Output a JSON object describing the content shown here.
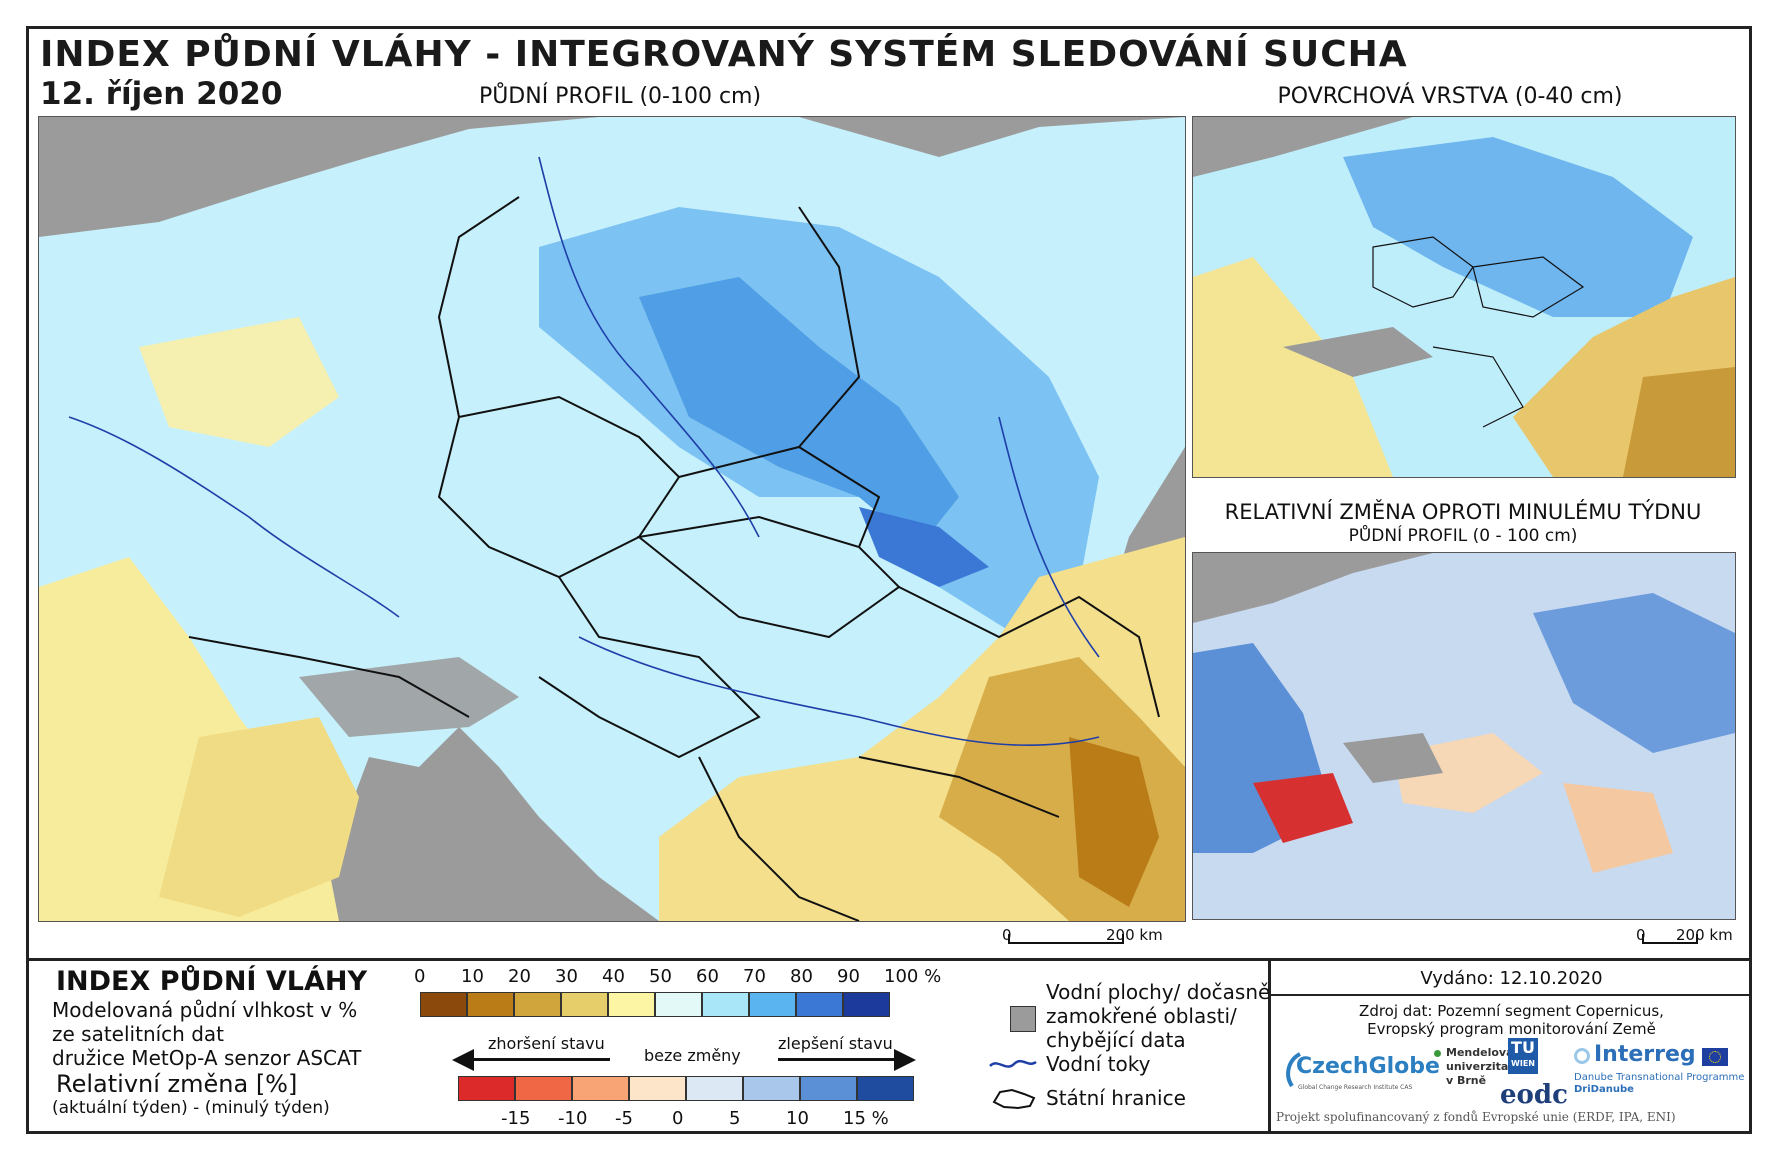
{
  "header": {
    "title": "INDEX PŮDNÍ VLÁHY - INTEGROVANÝ SYSTÉM SLEDOVÁNÍ SUCHA",
    "date": "12. říjen 2020"
  },
  "maps": {
    "main_caption": "PŮDNÍ PROFIL (0-100 cm)",
    "surface_caption": "POVRCHOVÁ VRSTVA (0-40 cm)",
    "change_caption": "RELATIVNÍ ZMĚNA OPROTI MINULÉMU TÝDNU",
    "change_subcaption": "PŮDNÍ PROFIL (0 - 100 cm)",
    "scale_zero": "0",
    "scale_end": "200 km"
  },
  "legend": {
    "title": "INDEX PŮDNÍ VLÁHY",
    "desc_line1": "Modelovaná půdní vlhkost v %",
    "desc_line2": "ze satelitních dat",
    "desc_line3": "družice MetOp-A senzor ASCAT",
    "change_title": "Relativní změna [%]",
    "change_desc": "(aktuální týden) - (minulý týden)",
    "index_ticks": [
      "0",
      "10",
      "20",
      "30",
      "40",
      "50",
      "60",
      "70",
      "80",
      "90",
      "100 %"
    ],
    "index_colors": [
      "#8b4a0b",
      "#b97c16",
      "#d0a53b",
      "#e6cf6b",
      "#fbf5a4",
      "#e3f9f8",
      "#a8e6f8",
      "#5ab4f0",
      "#3b78d6",
      "#1c3a9c"
    ],
    "worse_label": "zhoršení stavu",
    "nochange_label": "beze změny",
    "better_label": "zlepšení stavu",
    "change_ticks": [
      "-15",
      "-10",
      "-5",
      "0",
      "5",
      "10",
      "15 %"
    ],
    "change_colors": [
      "#dc2a2a",
      "#ef6744",
      "#f8a474",
      "#fde5c9",
      "#dce9f5",
      "#a8c7ea",
      "#5b8fd6",
      "#1f4c9e"
    ],
    "water_areas_l1": "Vodní plochy/ dočasně",
    "water_areas_l2": "zamokřené oblasti/",
    "water_areas_l3": "chybějící data",
    "rivers": "Vodní toky",
    "borders": "Státní hranice"
  },
  "info": {
    "issued": "Vydáno: 12.10.2020",
    "source_l1": "Zdroj dat: Pozemní segment Copernicus,",
    "source_l2": "Evropský program monitorování Země",
    "logo_czechglobe": "CzechGlobe",
    "logo_czechglobe_sub": "Global Change Research Institute CAS",
    "logo_mendel_l1": "Mendelova",
    "logo_mendel_l2": "univerzita",
    "logo_mendel_l3": "v Brně",
    "logo_tu": "TU",
    "logo_tu_sub": "WIEN",
    "logo_eodc": "eodc",
    "logo_interreg": "Interreg",
    "logo_interreg_l1": "Danube Transnational Programme",
    "logo_interreg_l2": "DriDanube",
    "funding": "Projekt spolufinancovaný z fondů Evropské unie (ERDF, IPA, ENI)"
  }
}
